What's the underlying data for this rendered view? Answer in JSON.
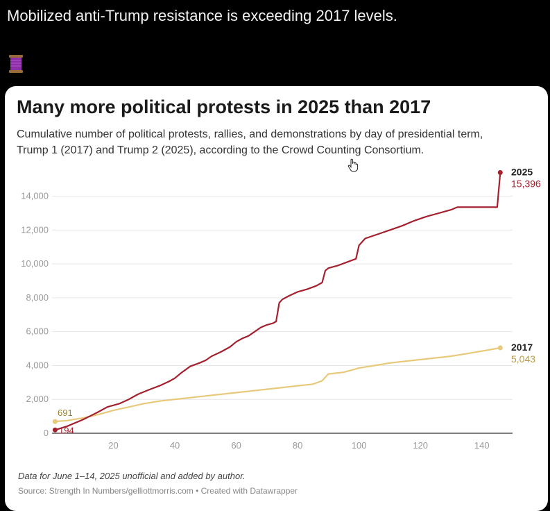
{
  "post": {
    "text": "Mobilized anti-Trump resistance is exceeding 2017 levels."
  },
  "chart_data": {
    "type": "line",
    "title": "Many more political protests in 2025 than 2017",
    "subtitle": "Cumulative number of political protests, rallies, and demonstrations by day of presidential term, Trump 1 (2017) and Trump 2 (2025), according to the Crowd Counting Consortium.",
    "xlabel": "",
    "ylabel": "",
    "xlim": [
      0,
      150
    ],
    "ylim": [
      0,
      15500
    ],
    "xticks": [
      "20",
      "40",
      "60",
      "80",
      "100",
      "120",
      "140"
    ],
    "yticks": [
      "0",
      "2,000",
      "4,000",
      "6,000",
      "8,000",
      "10,000",
      "12,000",
      "14,000"
    ],
    "grid": "horizontal",
    "series": [
      {
        "name": "2025",
        "color": "#a4202e",
        "end_label": "15,396",
        "start_label": "194",
        "points": [
          [
            1,
            194
          ],
          [
            5,
            420
          ],
          [
            10,
            800
          ],
          [
            15,
            1250
          ],
          [
            18,
            1550
          ],
          [
            22,
            1750
          ],
          [
            25,
            2000
          ],
          [
            28,
            2300
          ],
          [
            32,
            2600
          ],
          [
            35,
            2800
          ],
          [
            38,
            3050
          ],
          [
            40,
            3250
          ],
          [
            42,
            3550
          ],
          [
            45,
            3950
          ],
          [
            48,
            4150
          ],
          [
            50,
            4300
          ],
          [
            52,
            4550
          ],
          [
            55,
            4800
          ],
          [
            58,
            5100
          ],
          [
            60,
            5400
          ],
          [
            62,
            5600
          ],
          [
            64,
            5750
          ],
          [
            66,
            6000
          ],
          [
            68,
            6250
          ],
          [
            70,
            6400
          ],
          [
            72,
            6500
          ],
          [
            73,
            6600
          ],
          [
            74,
            7700
          ],
          [
            75,
            7900
          ],
          [
            77,
            8100
          ],
          [
            80,
            8350
          ],
          [
            83,
            8500
          ],
          [
            86,
            8700
          ],
          [
            88,
            8900
          ],
          [
            89,
            9600
          ],
          [
            90,
            9750
          ],
          [
            93,
            9900
          ],
          [
            96,
            10100
          ],
          [
            99,
            10300
          ],
          [
            100,
            11100
          ],
          [
            102,
            11500
          ],
          [
            106,
            11750
          ],
          [
            110,
            12000
          ],
          [
            114,
            12250
          ],
          [
            118,
            12550
          ],
          [
            122,
            12800
          ],
          [
            126,
            13000
          ],
          [
            130,
            13200
          ],
          [
            132,
            13350
          ],
          [
            145,
            13350
          ],
          [
            146,
            15396
          ]
        ]
      },
      {
        "name": "2017",
        "color": "#e8c97a",
        "end_label": "5,043",
        "start_label": "691",
        "points": [
          [
            1,
            691
          ],
          [
            5,
            750
          ],
          [
            10,
            900
          ],
          [
            15,
            1100
          ],
          [
            20,
            1350
          ],
          [
            25,
            1550
          ],
          [
            30,
            1750
          ],
          [
            35,
            1900
          ],
          [
            40,
            2000
          ],
          [
            50,
            2200
          ],
          [
            60,
            2400
          ],
          [
            70,
            2600
          ],
          [
            80,
            2800
          ],
          [
            85,
            2900
          ],
          [
            88,
            3100
          ],
          [
            90,
            3500
          ],
          [
            95,
            3600
          ],
          [
            100,
            3850
          ],
          [
            105,
            4000
          ],
          [
            110,
            4150
          ],
          [
            120,
            4350
          ],
          [
            130,
            4550
          ],
          [
            135,
            4700
          ],
          [
            140,
            4850
          ],
          [
            146,
            5043
          ]
        ]
      }
    ],
    "note": "Data for June 1–14, 2025 unofficial and added by author.",
    "source": "Source: Strength In Numbers/gelliottmorris.com • Created with Datawrapper"
  }
}
